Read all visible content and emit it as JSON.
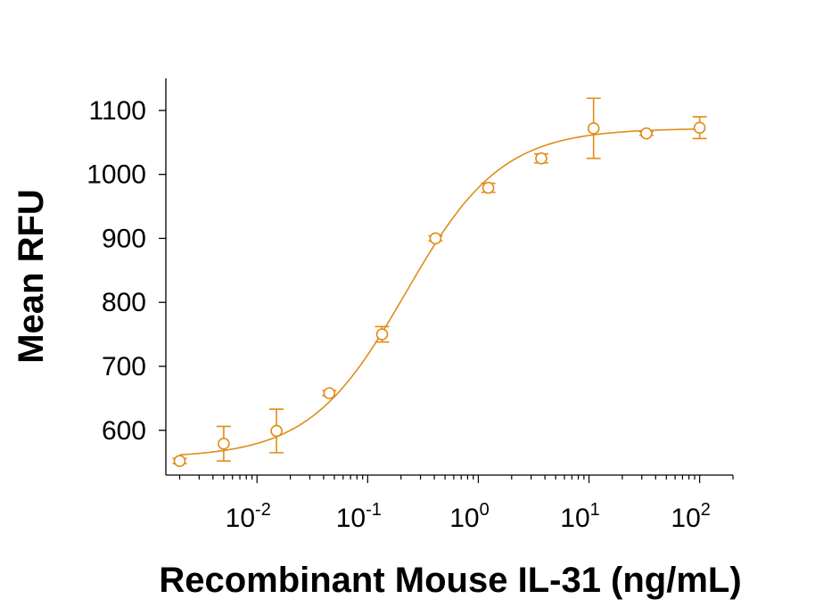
{
  "chart_data": {
    "type": "scatter",
    "title": "",
    "xlabel": "Recombinant Mouse IL-31 (ng/mL)",
    "ylabel": "Mean RFU",
    "x_scale": "log",
    "xlim": [
      0.0015,
      200
    ],
    "ylim": [
      530,
      1150
    ],
    "x_ticks": [
      {
        "value": 0.01,
        "base": "10",
        "exp": "-2"
      },
      {
        "value": 0.1,
        "base": "10",
        "exp": "-1"
      },
      {
        "value": 1,
        "base": "10",
        "exp": "0"
      },
      {
        "value": 10,
        "base": "10",
        "exp": "1"
      },
      {
        "value": 100,
        "base": "10",
        "exp": "2"
      }
    ],
    "y_ticks": [
      "600",
      "700",
      "800",
      "900",
      "1000",
      "1100"
    ],
    "grid": false,
    "legend": "none",
    "color": "#e08c1a",
    "series": [
      {
        "points": [
          {
            "x": 0.002,
            "y": 552,
            "err": 4
          },
          {
            "x": 0.005,
            "y": 579,
            "err": 27
          },
          {
            "x": 0.015,
            "y": 599,
            "err": 34
          },
          {
            "x": 0.045,
            "y": 658,
            "err": 4
          },
          {
            "x": 0.135,
            "y": 750,
            "err": 12
          },
          {
            "x": 0.41,
            "y": 900,
            "err": 4
          },
          {
            "x": 1.23,
            "y": 979,
            "err": 7
          },
          {
            "x": 3.7,
            "y": 1025,
            "err": 7
          },
          {
            "x": 11,
            "y": 1072,
            "err": 47
          },
          {
            "x": 33,
            "y": 1064,
            "err": 3
          },
          {
            "x": 100,
            "y": 1073,
            "err": 17
          }
        ]
      }
    ],
    "fit_curve": {
      "bottom": 557,
      "top": 1072,
      "ec50": 0.22,
      "hill": 1.0
    }
  }
}
